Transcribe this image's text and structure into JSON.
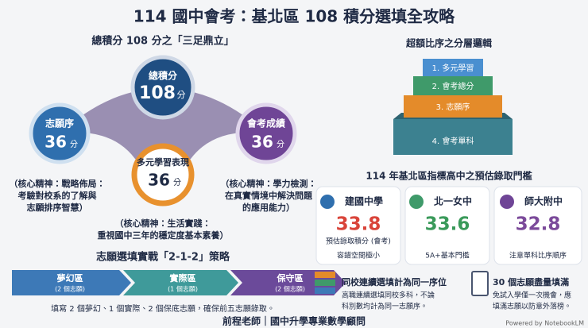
{
  "header": {
    "title": "114 國中會考：基北區 108 積分選填全攻略"
  },
  "score_section": {
    "title": "總積分 108 分之「三足鼎立」",
    "total": {
      "label": "總積分",
      "value": "108",
      "unit": "分"
    },
    "components": [
      {
        "label": "志願序",
        "value": "36",
        "unit": "分",
        "notes": [
          "（核心精神：戰略佈局：",
          "考驗對校系的了解與",
          "志願排序智慧）"
        ]
      },
      {
        "label": "會考成績",
        "value": "36",
        "unit": "分",
        "notes": [
          "（核心精神：學力檢測：",
          "在真實情境中解決問題",
          "的應用能力）"
        ]
      },
      {
        "label": "多元學習表現",
        "value": "36",
        "unit": "分",
        "notes": [
          "（核心精神：生活實踐：",
          "重視國中三年的穩定度基本素養）"
        ]
      }
    ]
  },
  "ranking": {
    "title": "超額比序之分層邏輯",
    "layers": [
      "1. 多元學習",
      "2. 會考總分",
      "3. 志願序",
      "4. 會考單科"
    ]
  },
  "schools": {
    "title": "114 年基北區指標高中之預估錄取門檻",
    "cards": [
      {
        "name": "建國中學",
        "score": "33.8",
        "details": [
          "預估錄取積分 (會考)",
          "容錯空間極小"
        ]
      },
      {
        "name": "北一女中",
        "score": "33.6",
        "details": [
          "5A+基本門檻"
        ]
      },
      {
        "name": "師大附中",
        "score": "32.8",
        "details": [
          "注意單科比序順序"
        ]
      }
    ]
  },
  "strategy": {
    "title": "志願選填實戰「2-1-2」策略",
    "zones": [
      {
        "name": "夢幻區",
        "count": "(2 個志願)"
      },
      {
        "name": "實際區",
        "count": "(1 個志願)"
      },
      {
        "name": "保守區",
        "count": "(2 個志願)"
      }
    ],
    "caption": "填寫 2 個夢幻、1 個實際、2 個保底志願，確保前五志願錄取。"
  },
  "tips": [
    {
      "title": "同校連續選填計為同一序位",
      "lines": [
        "高職連續選填同校多科，不論",
        "科別數均計為同一志願序。"
      ]
    },
    {
      "title": "30 個志願盡量填滿",
      "lines": [
        "免試入學僅一次機會，應",
        "填滿志願以防意外落榜。"
      ]
    }
  ],
  "footer": {
    "credit": "前程老師｜國中升學專業數學顧問",
    "powered_by": "Powered by NotebookLM"
  }
}
